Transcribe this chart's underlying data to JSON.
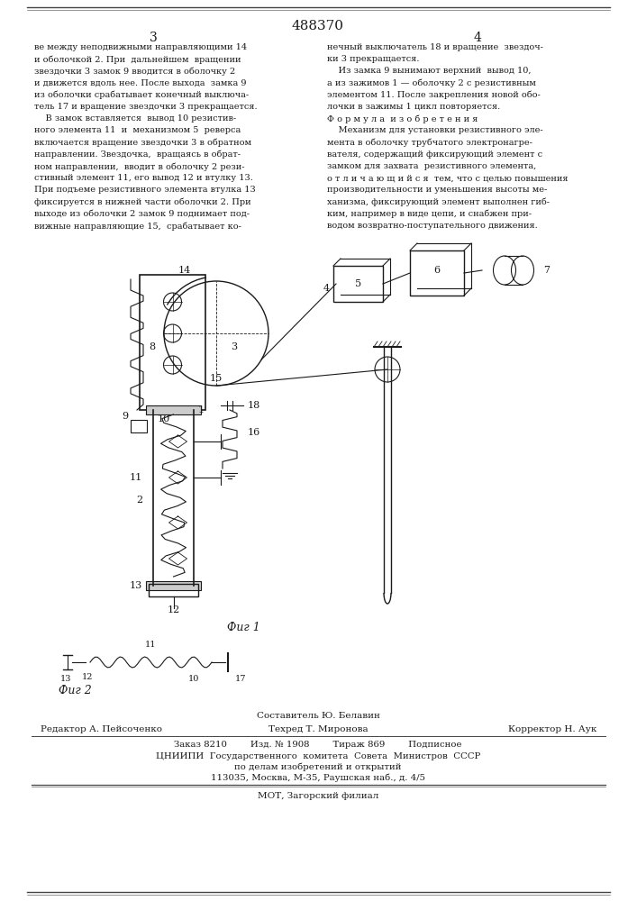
{
  "patent_number": "488370",
  "col1_text": [
    "ве между неподвижными направляющими 14",
    "и оболочкой 2. При  дальнейшем  вращении",
    "звездочки 3 замок 9 вводится в оболочку 2",
    "и движется вдоль нее. После выхода  замка 9",
    "из оболочки срабатывает конечный выключа-",
    "тель 17 и вращение звездочки 3 прекращается.",
    "    В замок вставляется  вывод 10 резистив-",
    "ного элемента 11  и  механизмом 5  реверса",
    "включается вращение звездочки 3 в обратном",
    "направлении. Звездочка,  вращаясь в обрат-",
    "ном направлении,  вводит в оболочку 2 рези-",
    "стивный элемент 11, его вывод 12 и втулку 13.",
    "При подъеме резистивного элемента втулка 13",
    "фиксируется в нижней части оболочки 2. При",
    "выходе из оболочки 2 замок 9 поднимает под-",
    "вижные направляющие 15,  срабатывает ко-"
  ],
  "col2_text": [
    "нечный выключатель 18 и вращение  звездоч-",
    "ки 3 прекращается.",
    "    Из замка 9 вынимают верхний  вывод 10,",
    "а из зажимов 1 — оболочку 2 с резистивным",
    "элементом 11. После закрепления новой обо-",
    "лочки в зажимы 1 цикл повторяется.",
    "Ф о р м у л а  и з о б р е т е н и я",
    "    Механизм для установки резистивного эле-",
    "мента в оболочку трубчатого электронагре-",
    "вателя, содержащий фиксирующий элемент с",
    "замком для захвата  резистивного элемента,",
    "о т л и ч а ю щ и й с я  тем, что с целью повышения",
    "производительности и уменьшения высоты ме-",
    "ханизма, фиксирующий элемент выполнен гиб-",
    "ким, например в виде цепи, и снабжен при-",
    "водом возвратно-поступательного движения."
  ],
  "editor_line": "Редактор А. Пейсоченко",
  "composer_line": "Составитель Ю. Белавин",
  "techred_line": "Техред Т. Миронова",
  "corrector_line": "Корректор Н. Аук",
  "order_line": "Заказ 8210        Изд. № 1908        Тираж 869        Подписное",
  "org_line1": "ЦНИИПИ  Государственного  комитета  Совета  Министров  СССР",
  "org_line2": "по делам изобретений и открытий",
  "org_line3": "113035, Москва, М-35, Раушская наб., д. 4/5",
  "printer_line": "МОТ, Загорский филиал",
  "fig1_label": "Фиг 1",
  "fig2_label": "Фиг 2",
  "background_color": "#ffffff",
  "text_color": "#1a1a1a",
  "border_color": "#444444"
}
